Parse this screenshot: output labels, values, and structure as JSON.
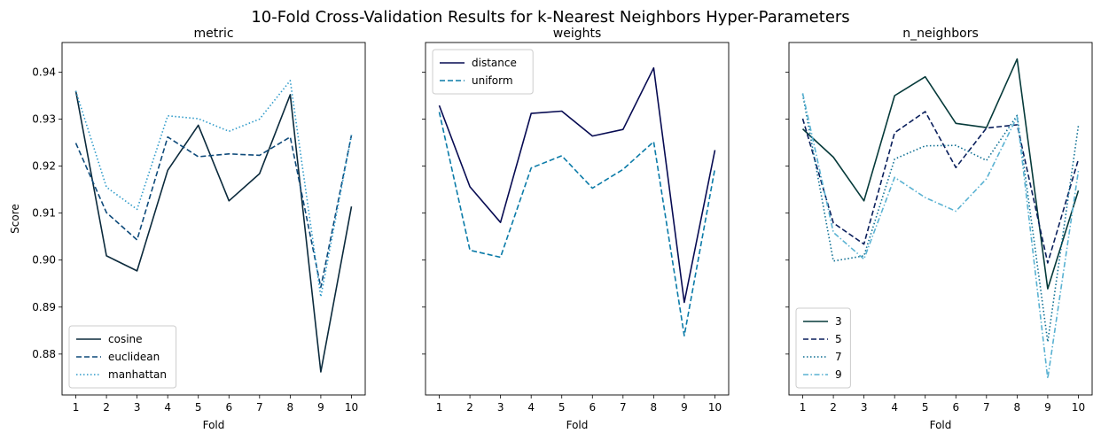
{
  "figure": {
    "title": "10-Fold Cross-Validation Results for k-Nearest Neighbors Hyper-Parameters"
  },
  "chart_data": [
    {
      "type": "line",
      "title": "metric",
      "xlabel": "Fold",
      "ylabel": "Score",
      "x": [
        1,
        2,
        3,
        4,
        5,
        6,
        7,
        8,
        9,
        10
      ],
      "ylim": [
        0.8713,
        0.9463
      ],
      "yticks": [
        "0.88",
        "0.89",
        "0.90",
        "0.91",
        "0.92",
        "0.93",
        "0.94"
      ],
      "ytick_values": [
        0.88,
        0.89,
        0.9,
        0.91,
        0.92,
        0.93,
        0.94
      ],
      "legend_position": "lower-left",
      "series": [
        {
          "name": "cosine",
          "color": "#0b2a3c",
          "dash": "solid",
          "values": [
            0.936,
            0.9009,
            0.8977,
            0.9191,
            0.9287,
            0.9126,
            0.9184,
            0.9352,
            0.8762,
            0.9114
          ]
        },
        {
          "name": "euclidean",
          "color": "#0e4a7a",
          "dash": "dashed",
          "values": [
            0.9249,
            0.9101,
            0.9043,
            0.9262,
            0.922,
            0.9226,
            0.9223,
            0.9262,
            0.8942,
            0.9266
          ]
        },
        {
          "name": "manhattan",
          "color": "#2e9ac9",
          "dash": "dotted",
          "values": [
            0.936,
            0.9155,
            0.9108,
            0.9307,
            0.9301,
            0.9274,
            0.93,
            0.9382,
            0.8922,
            0.9266
          ]
        }
      ]
    },
    {
      "type": "line",
      "title": "weights",
      "xlabel": "Fold",
      "ylabel": "",
      "x": [
        1,
        2,
        3,
        4,
        5,
        6,
        7,
        8,
        9,
        10
      ],
      "ylim": [
        0.8713,
        0.9463
      ],
      "legend_position": "top-left",
      "series": [
        {
          "name": "distance",
          "color": "#070b52",
          "dash": "solid",
          "values": [
            0.9329,
            0.9156,
            0.908,
            0.9312,
            0.9317,
            0.9264,
            0.9278,
            0.9409,
            0.891,
            0.9234
          ]
        },
        {
          "name": "uniform",
          "color": "#0b7ba8",
          "dash": "dashed",
          "values": [
            0.9315,
            0.9021,
            0.9006,
            0.9196,
            0.9222,
            0.9153,
            0.9193,
            0.9252,
            0.8839,
            0.9195
          ]
        }
      ]
    },
    {
      "type": "line",
      "title": "n_neighbors",
      "xlabel": "Fold",
      "ylabel": "",
      "x": [
        1,
        2,
        3,
        4,
        5,
        6,
        7,
        8,
        9,
        10
      ],
      "ylim": [
        0.8713,
        0.9463
      ],
      "legend_position": "lower-left",
      "series": [
        {
          "name": "3",
          "color": "#063a3a",
          "dash": "solid",
          "values": [
            0.9279,
            0.9219,
            0.9126,
            0.935,
            0.939,
            0.9291,
            0.9282,
            0.9428,
            0.8939,
            0.9148
          ]
        },
        {
          "name": "5",
          "color": "#0a1f5c",
          "dash": "dashed",
          "values": [
            0.9301,
            0.9079,
            0.9034,
            0.9271,
            0.9316,
            0.9197,
            0.9281,
            0.9288,
            0.8994,
            0.9214
          ]
        },
        {
          "name": "7",
          "color": "#0c6e92",
          "dash": "dotted",
          "values": [
            0.9353,
            0.8998,
            0.9009,
            0.9215,
            0.9243,
            0.9244,
            0.9212,
            0.9308,
            0.8826,
            0.9286
          ]
        },
        {
          "name": "9",
          "color": "#5ab2d2",
          "dash": "dashdot",
          "values": [
            0.9355,
            0.9059,
            0.9002,
            0.9176,
            0.9133,
            0.9104,
            0.9173,
            0.9305,
            0.8748,
            0.919
          ]
        }
      ]
    }
  ]
}
